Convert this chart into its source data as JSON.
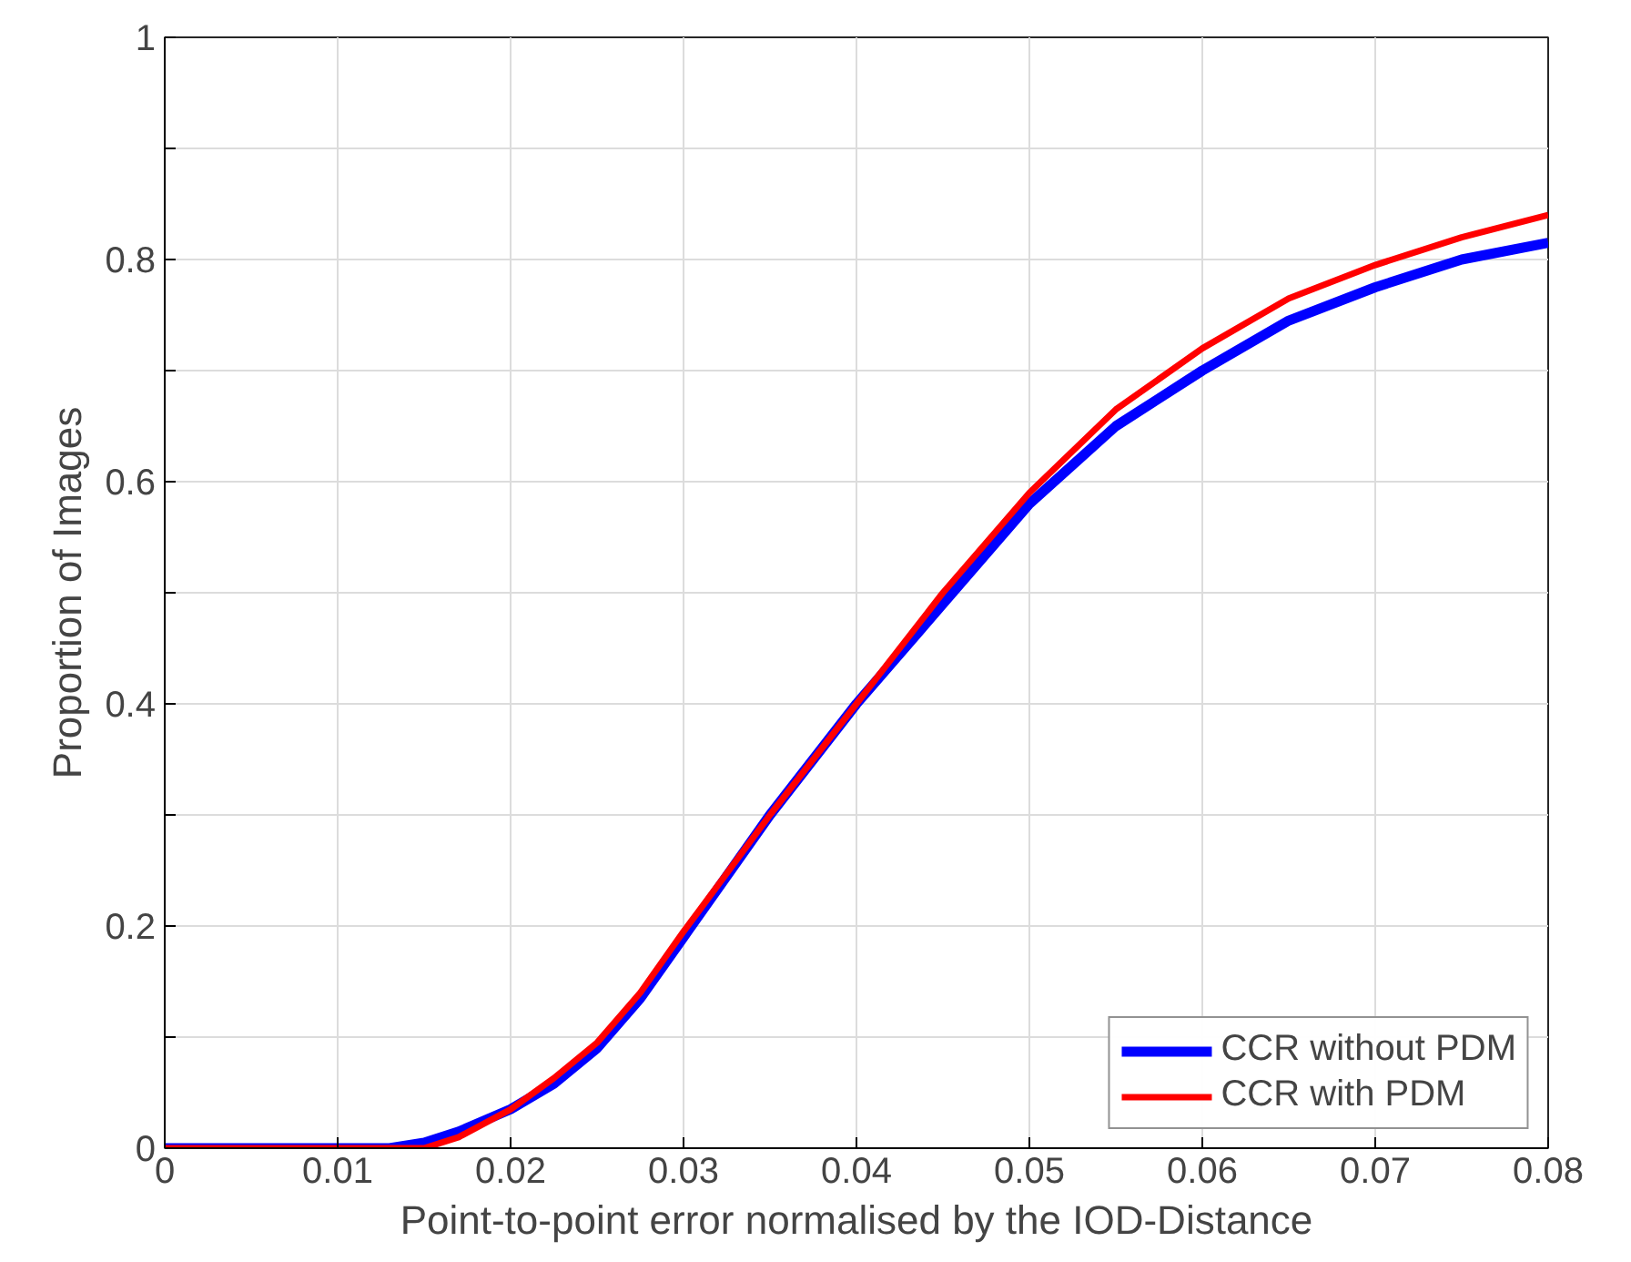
{
  "chart_data": {
    "type": "line",
    "xlabel": "Point-to-point error normalised by the IOD-Distance",
    "ylabel": "Proportion of Images",
    "xlim": [
      0,
      0.08
    ],
    "ylim": [
      0,
      1
    ],
    "xticks": [
      0,
      0.01,
      0.02,
      0.03,
      0.04,
      0.05,
      0.06,
      0.07,
      0.08
    ],
    "yticks": [
      0,
      {
        "value": 0.1,
        "label": null
      },
      0.2,
      {
        "value": 0.3,
        "label": null
      },
      0.4,
      {
        "value": 0.5,
        "label": null
      },
      0.6,
      {
        "value": 0.7,
        "label": null
      },
      0.8,
      {
        "value": 0.9,
        "label": null
      },
      1
    ],
    "grid": true,
    "legend": "bottom right",
    "line_style": "solid",
    "series": [
      {
        "name": "CCR without PDM",
        "color": "#0000ff",
        "x": [
          0,
          0.01,
          0.013,
          0.015,
          0.017,
          0.02,
          0.0225,
          0.025,
          0.0275,
          0.03,
          0.035,
          0.04,
          0.045,
          0.05,
          0.055,
          0.06,
          0.065,
          0.07,
          0.075,
          0.08
        ],
        "values": [
          0,
          0,
          0,
          0.005,
          0.015,
          0.035,
          0.058,
          0.09,
          0.135,
          0.19,
          0.3,
          0.4,
          0.49,
          0.58,
          0.65,
          0.7,
          0.745,
          0.775,
          0.8,
          0.815
        ]
      },
      {
        "name": "CCR with PDM",
        "color": "#ff0000",
        "x": [
          0,
          0.01,
          0.015,
          0.017,
          0.02,
          0.0225,
          0.025,
          0.0275,
          0.03,
          0.035,
          0.04,
          0.045,
          0.05,
          0.055,
          0.06,
          0.065,
          0.07,
          0.075,
          0.08
        ],
        "values": [
          0,
          0,
          0,
          0.01,
          0.035,
          0.063,
          0.095,
          0.14,
          0.195,
          0.3,
          0.4,
          0.5,
          0.59,
          0.665,
          0.72,
          0.765,
          0.795,
          0.82,
          0.84
        ]
      }
    ]
  }
}
